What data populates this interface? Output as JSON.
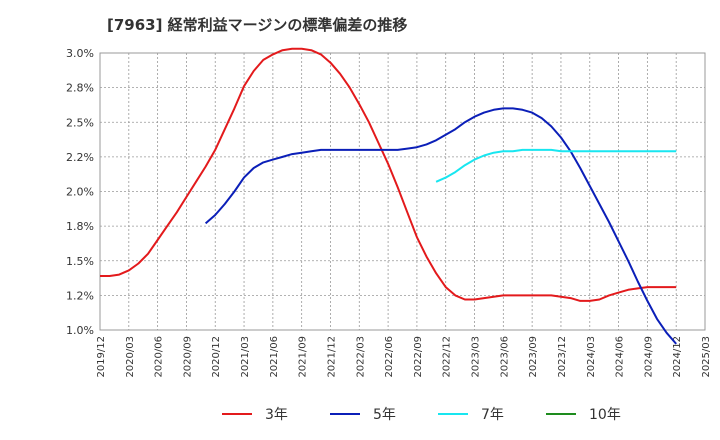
{
  "chart_data": {
    "type": "line",
    "title": "[7963]  経常利益マージンの標準偏差の推移",
    "xlabel": "",
    "ylabel": "",
    "ylim": [
      0.01,
      0.03
    ],
    "yticks": [
      0.01,
      0.0125,
      0.015,
      0.0175,
      0.02,
      0.0225,
      0.025,
      0.0275,
      0.03
    ],
    "ytick_labels": [
      "1.0%",
      "1.2%",
      "1.5%",
      "1.8%",
      "2.0%",
      "2.2%",
      "2.5%",
      "2.8%",
      "3.0%"
    ],
    "xticks": [
      "2019/12",
      "2020/03",
      "2020/06",
      "2020/09",
      "2020/12",
      "2021/03",
      "2021/06",
      "2021/09",
      "2021/12",
      "2022/03",
      "2022/06",
      "2022/09",
      "2022/12",
      "2023/03",
      "2023/06",
      "2023/09",
      "2023/12",
      "2024/03",
      "2024/06",
      "2024/09",
      "2024/12",
      "2025/03"
    ],
    "grid": true,
    "legend_position": "bottom",
    "series": [
      {
        "name": "3年",
        "color": "#e31a1c",
        "points": [
          [
            "2019/12",
            0.0139
          ],
          [
            "2020/01",
            0.0139
          ],
          [
            "2020/02",
            0.014
          ],
          [
            "2020/03",
            0.0143
          ],
          [
            "2020/04",
            0.0148
          ],
          [
            "2020/05",
            0.0155
          ],
          [
            "2020/06",
            0.0165
          ],
          [
            "2020/07",
            0.0175
          ],
          [
            "2020/08",
            0.0185
          ],
          [
            "2020/09",
            0.0196
          ],
          [
            "2020/10",
            0.0207
          ],
          [
            "2020/11",
            0.0218
          ],
          [
            "2020/12",
            0.023
          ],
          [
            "2021/01",
            0.0245
          ],
          [
            "2021/02",
            0.026
          ],
          [
            "2021/03",
            0.0276
          ],
          [
            "2021/04",
            0.0287
          ],
          [
            "2021/05",
            0.0295
          ],
          [
            "2021/06",
            0.0299
          ],
          [
            "2021/07",
            0.0302
          ],
          [
            "2021/08",
            0.0303
          ],
          [
            "2021/09",
            0.0303
          ],
          [
            "2021/10",
            0.0302
          ],
          [
            "2021/11",
            0.0299
          ],
          [
            "2021/12",
            0.0293
          ],
          [
            "2022/01",
            0.0285
          ],
          [
            "2022/02",
            0.0275
          ],
          [
            "2022/03",
            0.0263
          ],
          [
            "2022/04",
            0.025
          ],
          [
            "2022/05",
            0.0235
          ],
          [
            "2022/06",
            0.022
          ],
          [
            "2022/07",
            0.0203
          ],
          [
            "2022/08",
            0.0185
          ],
          [
            "2022/09",
            0.0167
          ],
          [
            "2022/10",
            0.0153
          ],
          [
            "2022/11",
            0.0141
          ],
          [
            "2022/12",
            0.0131
          ],
          [
            "2023/01",
            0.0125
          ],
          [
            "2023/02",
            0.0122
          ],
          [
            "2023/03",
            0.0122
          ],
          [
            "2023/04",
            0.0123
          ],
          [
            "2023/05",
            0.0124
          ],
          [
            "2023/06",
            0.0125
          ],
          [
            "2023/07",
            0.0125
          ],
          [
            "2023/08",
            0.0125
          ],
          [
            "2023/09",
            0.0125
          ],
          [
            "2023/10",
            0.0125
          ],
          [
            "2023/11",
            0.0125
          ],
          [
            "2023/12",
            0.0124
          ],
          [
            "2024/01",
            0.0123
          ],
          [
            "2024/02",
            0.0121
          ],
          [
            "2024/03",
            0.0121
          ],
          [
            "2024/04",
            0.0122
          ],
          [
            "2024/05",
            0.0125
          ],
          [
            "2024/06",
            0.0127
          ],
          [
            "2024/07",
            0.0129
          ],
          [
            "2024/08",
            0.013
          ],
          [
            "2024/09",
            0.0131
          ],
          [
            "2024/10",
            0.0131
          ],
          [
            "2024/11",
            0.0131
          ],
          [
            "2024/12",
            0.0131
          ]
        ]
      },
      {
        "name": "5年",
        "color": "#0b1fb8",
        "points": [
          [
            "2020/11",
            0.0177
          ],
          [
            "2020/12",
            0.0183
          ],
          [
            "2021/01",
            0.0191
          ],
          [
            "2021/02",
            0.02
          ],
          [
            "2021/03",
            0.021
          ],
          [
            "2021/04",
            0.0217
          ],
          [
            "2021/05",
            0.0221
          ],
          [
            "2021/06",
            0.0223
          ],
          [
            "2021/07",
            0.0225
          ],
          [
            "2021/08",
            0.0227
          ],
          [
            "2021/09",
            0.0228
          ],
          [
            "2021/10",
            0.0229
          ],
          [
            "2021/11",
            0.023
          ],
          [
            "2021/12",
            0.023
          ],
          [
            "2022/01",
            0.023
          ],
          [
            "2022/02",
            0.023
          ],
          [
            "2022/03",
            0.023
          ],
          [
            "2022/04",
            0.023
          ],
          [
            "2022/05",
            0.023
          ],
          [
            "2022/06",
            0.023
          ],
          [
            "2022/07",
            0.023
          ],
          [
            "2022/08",
            0.0231
          ],
          [
            "2022/09",
            0.0232
          ],
          [
            "2022/10",
            0.0234
          ],
          [
            "2022/11",
            0.0237
          ],
          [
            "2022/12",
            0.0241
          ],
          [
            "2023/01",
            0.0245
          ],
          [
            "2023/02",
            0.025
          ],
          [
            "2023/03",
            0.0254
          ],
          [
            "2023/04",
            0.0257
          ],
          [
            "2023/05",
            0.0259
          ],
          [
            "2023/06",
            0.026
          ],
          [
            "2023/07",
            0.026
          ],
          [
            "2023/08",
            0.0259
          ],
          [
            "2023/09",
            0.0257
          ],
          [
            "2023/10",
            0.0253
          ],
          [
            "2023/11",
            0.0247
          ],
          [
            "2023/12",
            0.0239
          ],
          [
            "2024/01",
            0.0229
          ],
          [
            "2024/02",
            0.0217
          ],
          [
            "2024/03",
            0.0204
          ],
          [
            "2024/04",
            0.0191
          ],
          [
            "2024/05",
            0.0178
          ],
          [
            "2024/06",
            0.0164
          ],
          [
            "2024/07",
            0.015
          ],
          [
            "2024/08",
            0.0135
          ],
          [
            "2024/09",
            0.0121
          ],
          [
            "2024/10",
            0.0108
          ],
          [
            "2024/11",
            0.0098
          ],
          [
            "2024/12",
            0.009
          ]
        ]
      },
      {
        "name": "7年",
        "color": "#18e6f0",
        "points": [
          [
            "2022/11",
            0.0207
          ],
          [
            "2022/12",
            0.021
          ],
          [
            "2023/01",
            0.0214
          ],
          [
            "2023/02",
            0.0219
          ],
          [
            "2023/03",
            0.0223
          ],
          [
            "2023/04",
            0.0226
          ],
          [
            "2023/05",
            0.0228
          ],
          [
            "2023/06",
            0.0229
          ],
          [
            "2023/07",
            0.0229
          ],
          [
            "2023/08",
            0.023
          ],
          [
            "2023/09",
            0.023
          ],
          [
            "2023/10",
            0.023
          ],
          [
            "2023/11",
            0.023
          ],
          [
            "2023/12",
            0.0229
          ],
          [
            "2024/01",
            0.0229
          ],
          [
            "2024/02",
            0.0229
          ],
          [
            "2024/03",
            0.0229
          ],
          [
            "2024/04",
            0.0229
          ],
          [
            "2024/05",
            0.0229
          ],
          [
            "2024/06",
            0.0229
          ],
          [
            "2024/07",
            0.0229
          ],
          [
            "2024/08",
            0.0229
          ],
          [
            "2024/09",
            0.0229
          ],
          [
            "2024/10",
            0.0229
          ],
          [
            "2024/11",
            0.0229
          ],
          [
            "2024/12",
            0.0229
          ]
        ]
      },
      {
        "name": "10年",
        "color": "#1e8c1e",
        "points": []
      }
    ]
  }
}
